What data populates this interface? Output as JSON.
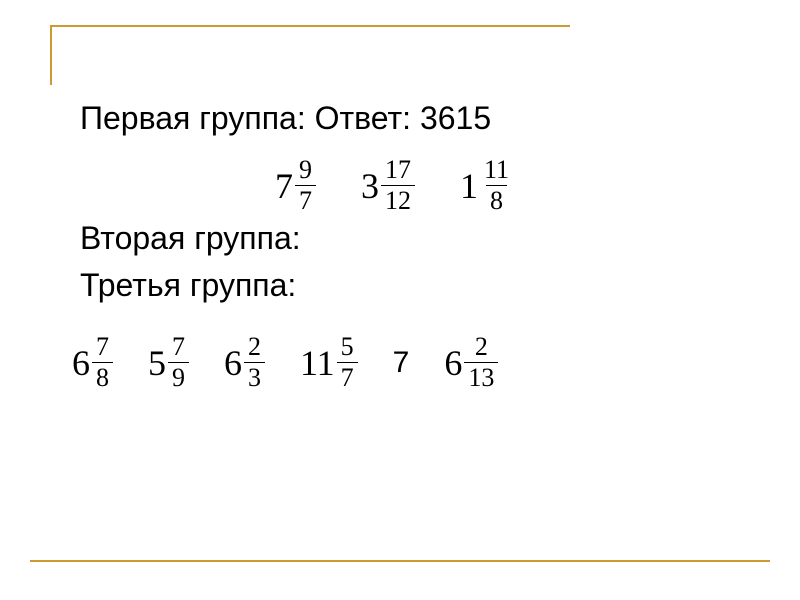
{
  "frame": {
    "color": "#cc9933"
  },
  "line1": {
    "prefix": "Первая группа: ",
    "answer_label": "Ответ: ",
    "answer_value": "3615"
  },
  "line2": {
    "label": "Вторая группа:",
    "fractions": [
      {
        "whole": "7",
        "num": "9",
        "den": "7"
      },
      {
        "whole": "3",
        "num": "17",
        "den": "12"
      },
      {
        "whole": "1",
        "num": "11",
        "den": "8"
      }
    ]
  },
  "line3": {
    "label": "Третья группа:",
    "items": [
      {
        "type": "mixed",
        "whole": "6",
        "num": "7",
        "den": "8"
      },
      {
        "type": "mixed",
        "whole": "5",
        "num": "7",
        "den": "9"
      },
      {
        "type": "mixed",
        "whole": "6",
        "num": "2",
        "den": "3"
      },
      {
        "type": "mixed",
        "whole": "11",
        "num": "5",
        "den": "7"
      },
      {
        "type": "plain",
        "value": "7"
      },
      {
        "type": "mixed",
        "whole": "6",
        "num": "2",
        "den": "13"
      }
    ]
  }
}
